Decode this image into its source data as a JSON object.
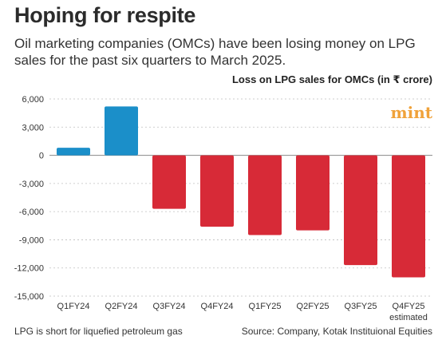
{
  "header": {
    "title": "Hoping for respite",
    "subtitle": "Oil marketing companies (OMCs) have been losing money on LPG sales for the past six quarters to March 2025."
  },
  "logo": {
    "text": "mint",
    "color": "#f0a23a"
  },
  "footer": {
    "note": "LPG is short for liquefied petroleum gas",
    "source": "Source: Company, Kotak Instituional Equities"
  },
  "chart_data": {
    "type": "bar",
    "title": "",
    "ylabel": "Loss on LPG sales for OMCs (in ₹ crore)",
    "xlabel": "",
    "categories": [
      "Q1FY24",
      "Q2FY24",
      "Q3FY24",
      "Q4FY24",
      "Q1FY25",
      "Q2FY25",
      "Q3FY25",
      "Q4FY25"
    ],
    "category_sublabels": [
      "",
      "",
      "",
      "",
      "",
      "",
      "",
      "estimated"
    ],
    "values": [
      800,
      5200,
      -5700,
      -7600,
      -8500,
      -8000,
      -11700,
      -13000
    ],
    "ylim": [
      -15000,
      6000
    ],
    "yticks": [
      6000,
      3000,
      0,
      -3000,
      -6000,
      -9000,
      -12000,
      -15000
    ],
    "ytick_labels": [
      "6,000",
      "3,000",
      "0",
      "-3,000",
      "-6,000",
      "-9,000",
      "-12,000",
      "-15,000"
    ],
    "grid": true,
    "colors": {
      "positive": "#1b8fc9",
      "negative": "#d72a37",
      "grid": "#bfbfbf"
    }
  }
}
